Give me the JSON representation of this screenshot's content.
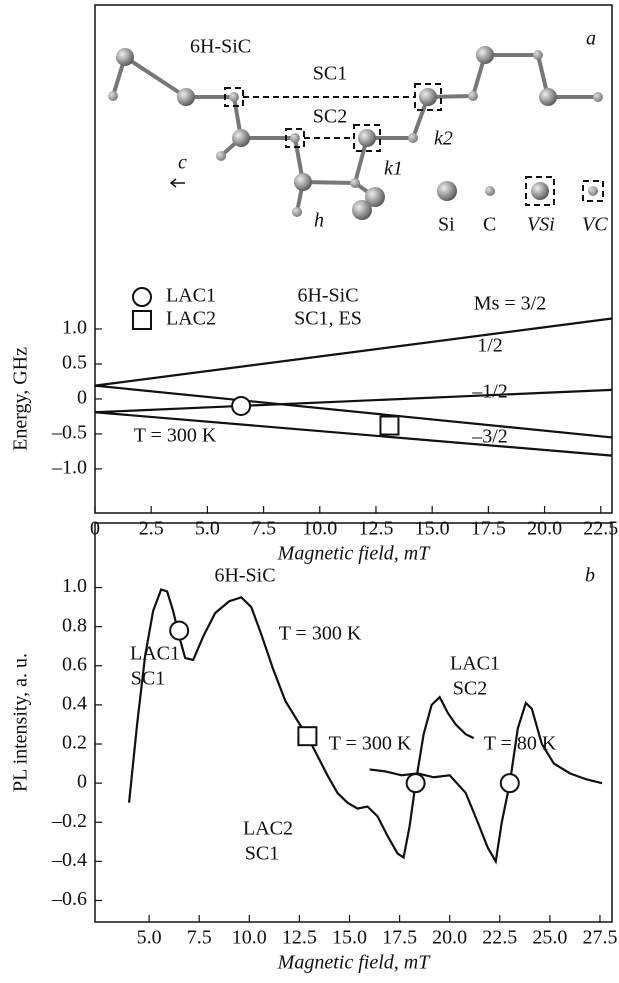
{
  "diagram": {
    "labels": [
      "6H-SiC",
      "SC1",
      "SC2",
      "c",
      "k1",
      "k2",
      "h",
      "Si",
      "C",
      "VSi",
      "VC"
    ]
  },
  "chart_data": [
    {
      "type": "line",
      "ylabel": "Energy, GHz",
      "xlabel": "Magnetic field, mT",
      "x": [
        0,
        23
      ],
      "series": [
        {
          "name": "Ms = 3/2",
          "color": "#111111",
          "values": [
            0.19,
            1.15
          ]
        },
        {
          "name": "1/2",
          "color": "#111111",
          "values": [
            -0.19,
            0.13
          ]
        },
        {
          "name": "–1/2",
          "color": "#111111",
          "values": [
            0.19,
            -0.55
          ]
        },
        {
          "name": "–3/2",
          "color": "#111111",
          "values": [
            -0.19,
            -0.81
          ]
        }
      ],
      "markers": [
        {
          "name": "LAC1",
          "shape": "circle",
          "x": 6.5,
          "y": -0.1
        },
        {
          "name": "LAC2",
          "shape": "square",
          "x": 13.1,
          "y": -0.38
        }
      ],
      "annotations": [
        "6H-SiC",
        "SC1, ES",
        "T = 300 K",
        "a"
      ],
      "xlim": [
        0,
        23
      ],
      "ylim": [
        -1.63,
        5.63
      ],
      "xticks": [
        0,
        2.5,
        {
          "value": 5,
          "label": "5.0"
        },
        7.5,
        {
          "value": 10,
          "label": "10.0"
        },
        12.5,
        {
          "value": 15,
          "label": "15.0"
        },
        17.5,
        {
          "value": 20,
          "label": "20.0"
        },
        22.5
      ],
      "yticks": [
        {
          "value": 1,
          "label": "1.0"
        },
        0.5,
        0,
        {
          "value": -0.5,
          "label": "–0.5"
        },
        {
          "value": -1,
          "label": "–1.0"
        }
      ]
    },
    {
      "type": "line",
      "ylabel": "PL intensity, a. u.",
      "xlabel": "Magnetic field, mT",
      "series": [
        {
          "color": "#111111",
          "x": [
            4.0,
            4.4,
            4.8,
            5.2,
            5.6,
            5.9,
            6.2,
            6.5,
            6.8,
            7.2,
            7.7,
            8.3,
            9.0,
            9.6,
            10.1,
            10.6,
            11.2,
            11.8,
            12.4,
            12.9,
            13.4,
            13.9,
            14.4,
            14.9,
            15.4,
            15.9,
            16.4,
            16.9,
            17.4,
            17.7,
            18.0,
            18.3,
            18.7,
            19.1,
            19.5,
            19.9,
            20.3,
            20.8,
            21.2
          ],
          "values": [
            -0.1,
            0.3,
            0.65,
            0.88,
            0.99,
            0.98,
            0.88,
            0.75,
            0.64,
            0.63,
            0.75,
            0.87,
            0.93,
            0.95,
            0.9,
            0.76,
            0.58,
            0.42,
            0.32,
            0.24,
            0.14,
            0.04,
            -0.05,
            -0.1,
            -0.13,
            -0.12,
            -0.17,
            -0.27,
            -0.36,
            -0.38,
            -0.22,
            0,
            0.25,
            0.4,
            0.44,
            0.36,
            0.3,
            0.25,
            0.23
          ]
        },
        {
          "color": "#111111",
          "x": [
            16.0,
            16.8,
            17.6,
            18.4,
            19.2,
            20.0,
            20.8,
            21.4,
            21.9,
            22.3,
            22.6,
            23.0,
            23.4,
            23.8,
            24.1,
            24.6,
            25.2,
            26.0,
            26.8,
            27.6
          ],
          "values": [
            0.07,
            0.06,
            0.04,
            0.05,
            0.03,
            0.04,
            -0.05,
            -0.2,
            -0.33,
            -0.4,
            -0.2,
            0,
            0.28,
            0.41,
            0.38,
            0.2,
            0.1,
            0.05,
            0.02,
            0.0
          ]
        }
      ],
      "markers": [
        {
          "shape": "circle",
          "x": 6.5,
          "y": 0.78
        },
        {
          "shape": "square",
          "x": 12.9,
          "y": 0.24
        },
        {
          "shape": "circle",
          "x": 18.3,
          "y": 0
        },
        {
          "shape": "circle",
          "x": 23,
          "y": 0
        }
      ],
      "annotations": [
        "6H-SiC",
        "T = 300 K",
        "LAC1",
        "SC1",
        "LAC2",
        "SC1",
        "LAC1",
        "SC2",
        "T = 300 K",
        "T = 80 K",
        "b"
      ],
      "xlim": [
        2.3,
        28.1
      ],
      "ylim": [
        -0.71,
        1.33
      ],
      "xticks": [
        {
          "value": 5,
          "label": "5.0"
        },
        7.5,
        {
          "value": 10,
          "label": "10.0"
        },
        12.5,
        {
          "value": 15,
          "label": "15.0"
        },
        17.5,
        {
          "value": 20,
          "label": "20.0"
        },
        22.5,
        {
          "value": 25,
          "label": "25.0"
        },
        27.5
      ],
      "yticks": [
        {
          "value": 1,
          "label": "1.0"
        },
        0.8,
        0.6,
        0.4,
        0.2,
        0,
        {
          "value": -0.2,
          "label": "–0.2"
        },
        {
          "value": -0.4,
          "label": "–0.4"
        },
        {
          "value": -0.6,
          "label": "–0.6"
        }
      ]
    }
  ]
}
